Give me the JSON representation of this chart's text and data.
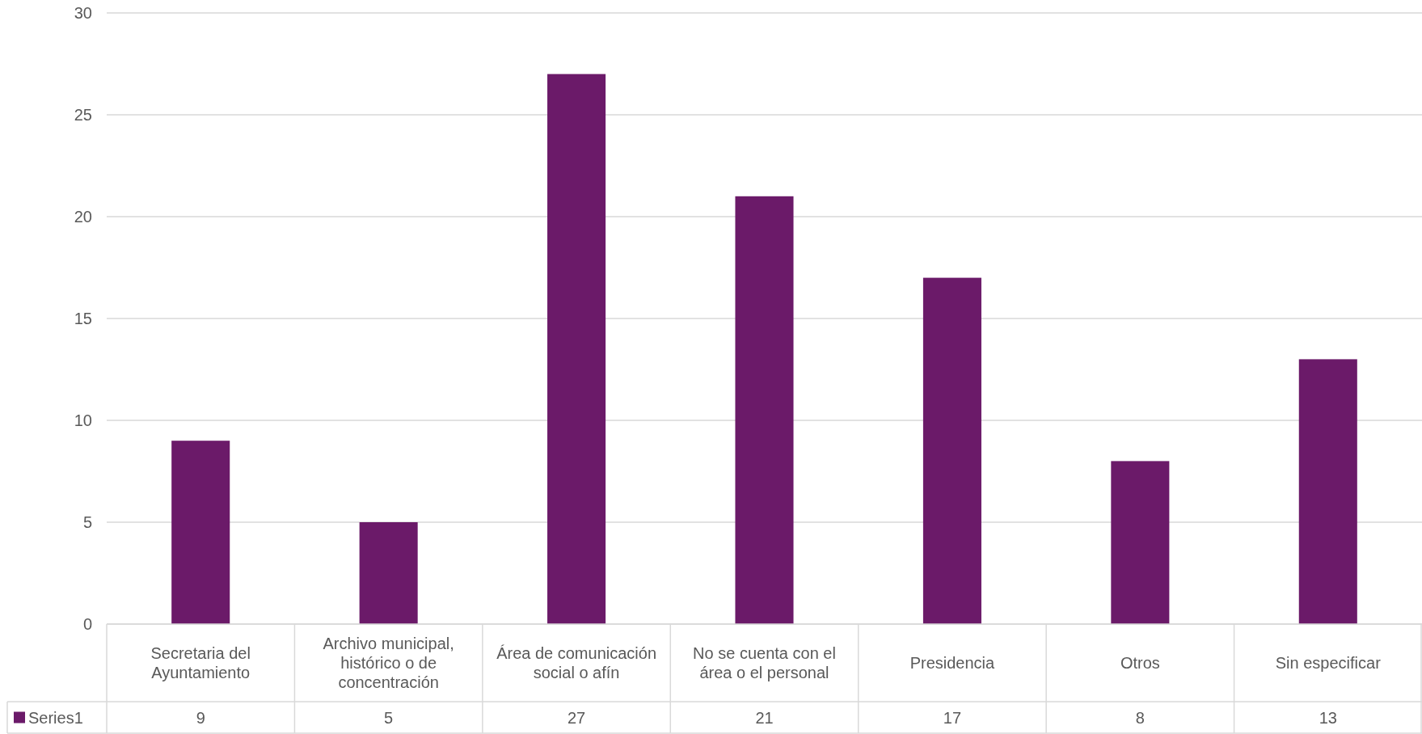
{
  "chart_data": {
    "type": "bar",
    "categories": [
      "Secretaria del Ayuntamiento",
      "Archivo municipal, histórico o de concentración",
      "Área de comunicación social o afín",
      "No se cuenta con el área o el personal",
      "Presidencia",
      "Otros",
      "Sin especificar"
    ],
    "series": [
      {
        "name": "Series1",
        "color": "#6b1a69",
        "values": [
          9,
          5,
          27,
          21,
          17,
          8,
          13
        ]
      }
    ],
    "ylim": [
      0,
      30
    ],
    "yticks": [
      0,
      5,
      10,
      15,
      20,
      25,
      30
    ],
    "grid": "y",
    "data_labels": true
  }
}
